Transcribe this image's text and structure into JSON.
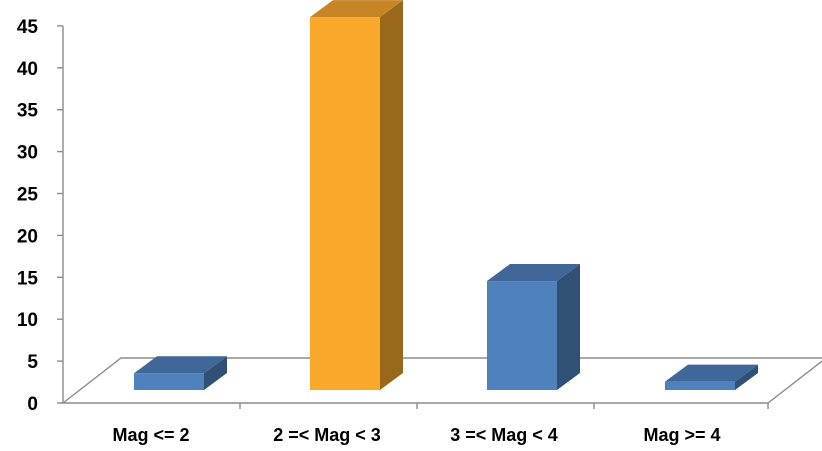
{
  "chart_data": {
    "type": "bar",
    "style": "3d-column",
    "categories": [
      "Mag <= 2",
      "2 =< Mag < 3",
      "3 =< Mag < 4",
      "Mag >= 4"
    ],
    "values": [
      2,
      44.5,
      13,
      1
    ],
    "ylim": [
      0,
      45
    ],
    "yticks": [
      "0",
      "5",
      "10",
      "15",
      "20",
      "25",
      "30",
      "35",
      "40",
      "45"
    ],
    "title": "",
    "xlabel": "",
    "ylabel": "",
    "legend": "none",
    "grid": false,
    "colors": {
      "default_bar": "#4f81bd",
      "highlight_bar": "#f9a82c"
    },
    "highlight_index": 1
  }
}
